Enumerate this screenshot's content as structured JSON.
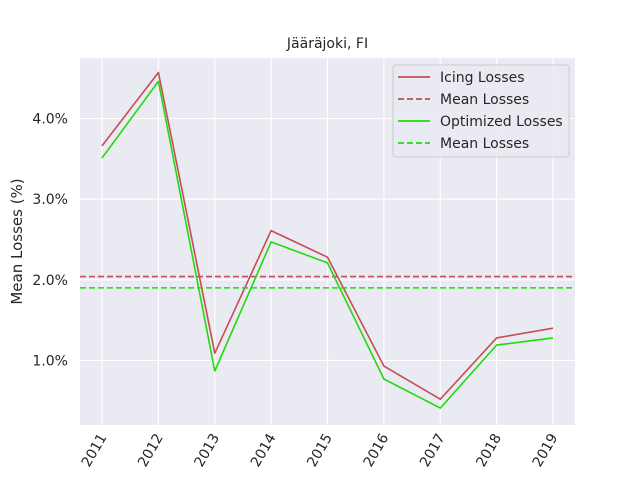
{
  "chart_data": {
    "type": "line",
    "title": "Jääräjoki, FI",
    "xlabel": "",
    "ylabel": "Mean Losses (%)",
    "x": [
      "2011",
      "2012",
      "2013",
      "2014",
      "2015",
      "2016",
      "2017",
      "2018",
      "2019"
    ],
    "ylim": [
      0.2,
      4.75
    ],
    "yticks": [
      1.0,
      2.0,
      3.0,
      4.0
    ],
    "ytick_labels": [
      "1.0%",
      "2.0%",
      "3.0%",
      "4.0%"
    ],
    "grid": true,
    "legend_position": "top-right",
    "series": [
      {
        "name": "Icing Losses",
        "style": "solid",
        "color": "#c44e52",
        "values": [
          3.66,
          4.57,
          1.09,
          2.61,
          2.28,
          0.93,
          0.52,
          1.28,
          1.4
        ]
      },
      {
        "name": "Mean Losses",
        "style": "dashed",
        "color": "#c44e52",
        "values": [
          2.04,
          2.04,
          2.04,
          2.04,
          2.04,
          2.04,
          2.04,
          2.04,
          2.04
        ]
      },
      {
        "name": "Optimized Losses",
        "style": "solid",
        "color": "#22d90e",
        "values": [
          3.51,
          4.46,
          0.87,
          2.47,
          2.21,
          0.77,
          0.41,
          1.19,
          1.28
        ]
      },
      {
        "name": "Mean Losses",
        "style": "dashed",
        "color": "#22d90e",
        "values": [
          1.9,
          1.9,
          1.9,
          1.9,
          1.9,
          1.9,
          1.9,
          1.9,
          1.9
        ]
      }
    ]
  }
}
